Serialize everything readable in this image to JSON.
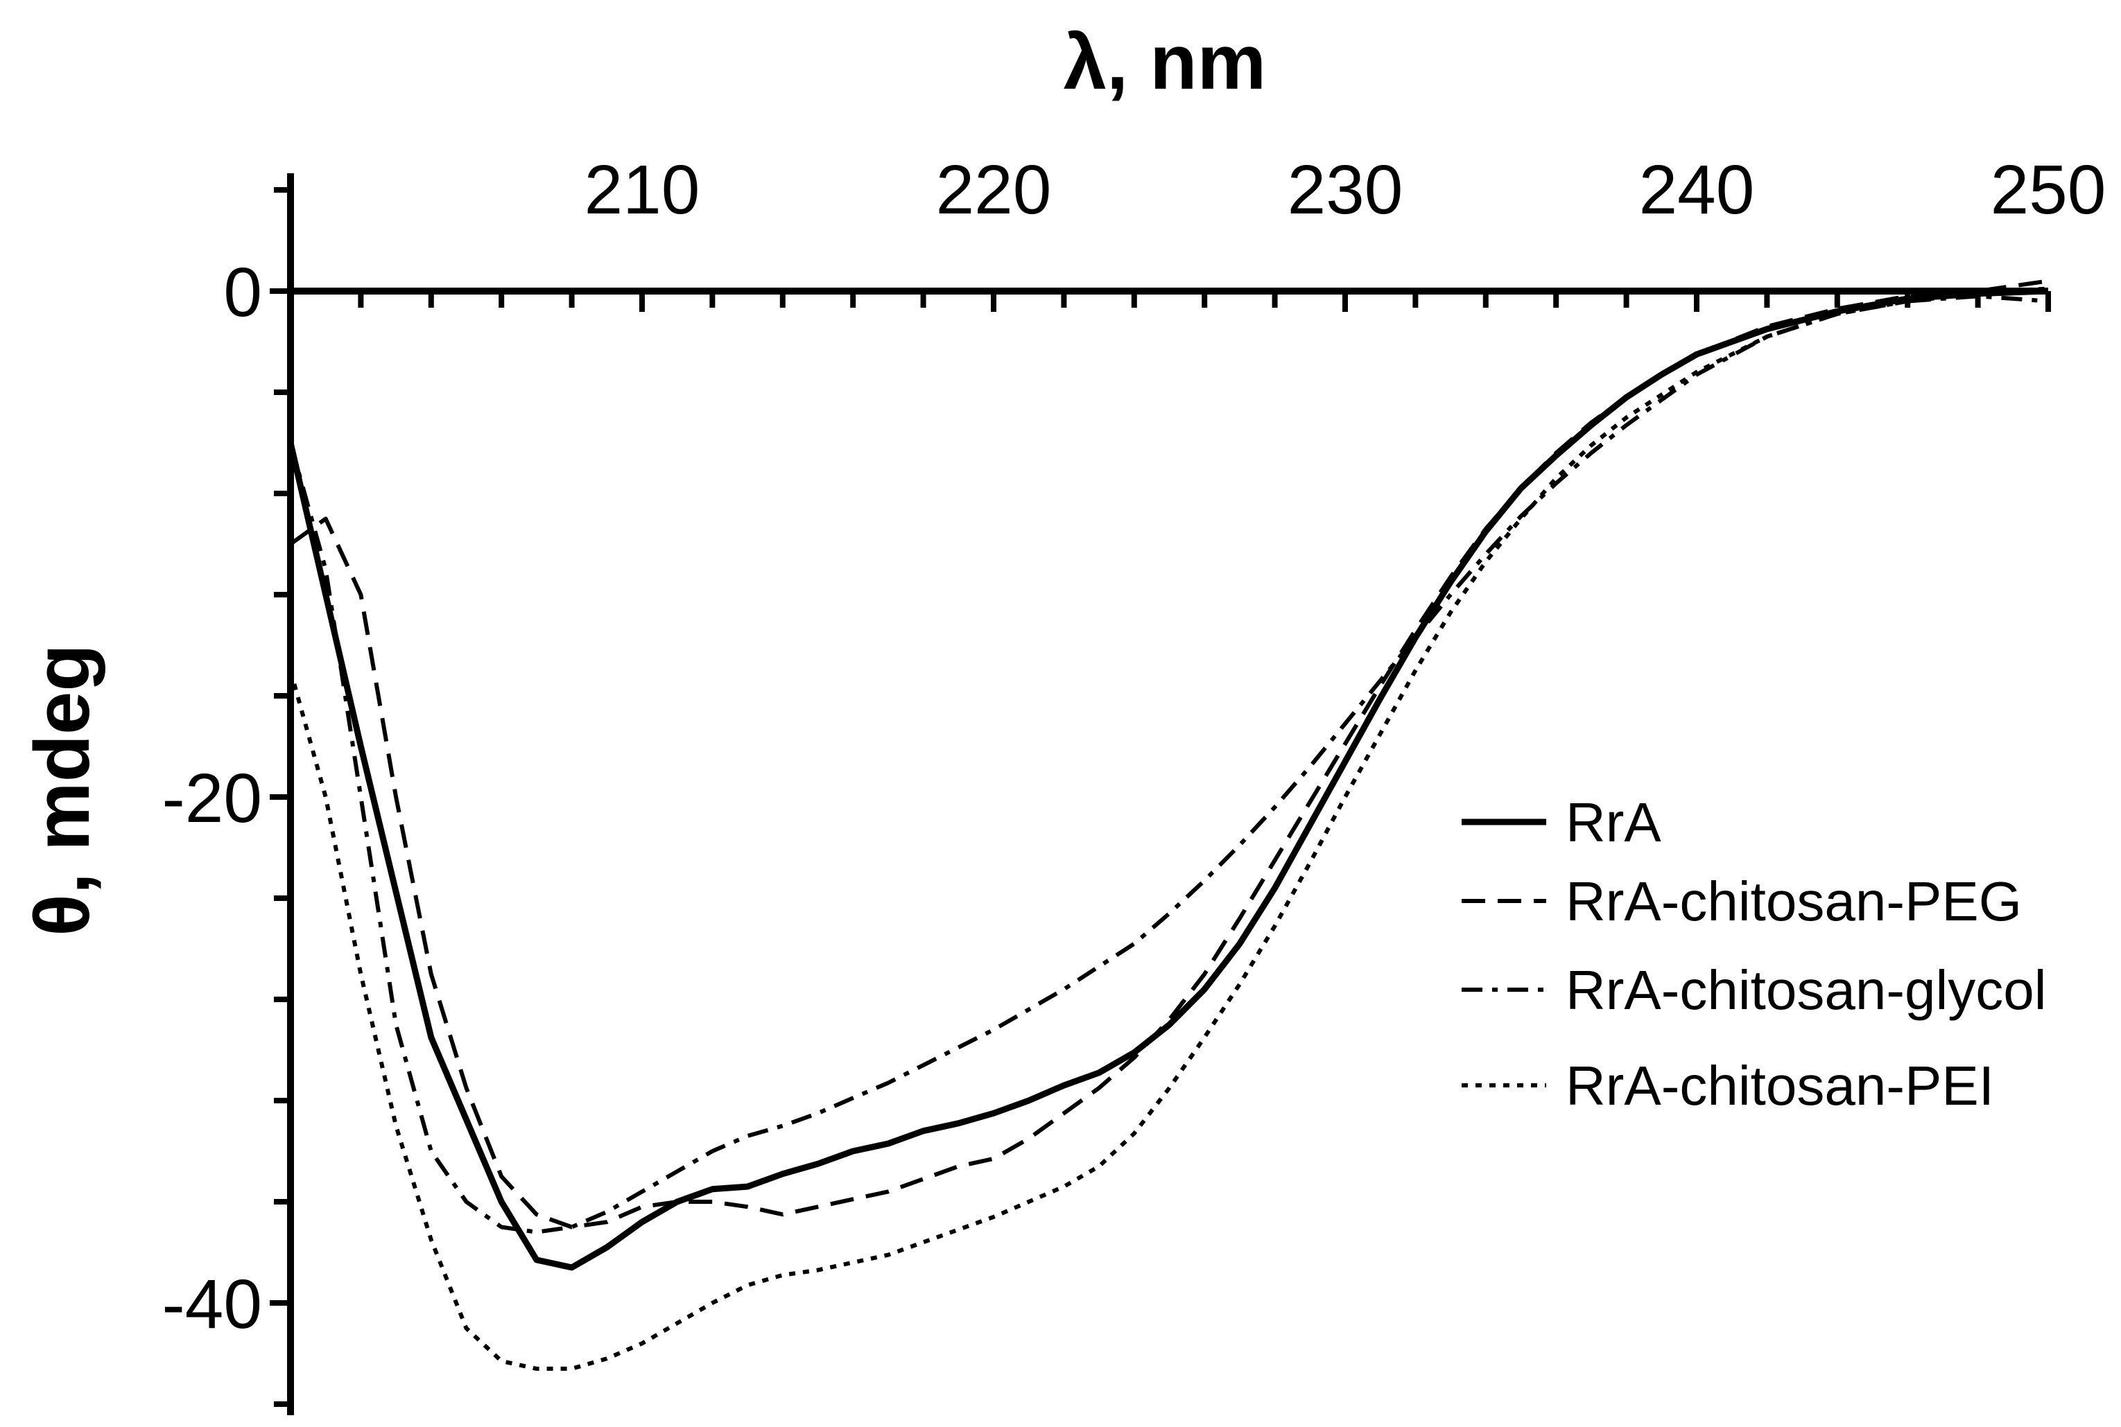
{
  "chart_data": {
    "type": "line",
    "title": "",
    "xlabel": "λ, nm",
    "ylabel": "θ, mdeg",
    "xlim": [
      200,
      250
    ],
    "ylim": [
      -44,
      4
    ],
    "xticks": [
      210,
      220,
      230,
      240,
      250
    ],
    "xtick_labels": [
      "210",
      "220",
      "230",
      "240",
      "250"
    ],
    "yticks": [
      0,
      -20,
      -40
    ],
    "ytick_labels": [
      "0",
      "-20",
      "-40"
    ],
    "legend_position": "right",
    "grid": false,
    "series": [
      {
        "name": "RrA",
        "style": "solid",
        "x": [
          200,
          202,
          204,
          206,
          207,
          208,
          209,
          210,
          211,
          212,
          213,
          214,
          215,
          216,
          217,
          218,
          219,
          220,
          221,
          222,
          223,
          224,
          225,
          226,
          227,
          228,
          229,
          230,
          231,
          232,
          233,
          234,
          235,
          236,
          237,
          238,
          239,
          240,
          242,
          244,
          246,
          248,
          250
        ],
        "values": [
          -6,
          -18,
          -29.5,
          -36,
          -38.3,
          -38.6,
          -37.8,
          -36.8,
          -36,
          -35.5,
          -35.4,
          -34.9,
          -34.5,
          -34,
          -33.7,
          -33.2,
          -32.9,
          -32.5,
          -32,
          -31.4,
          -30.9,
          -30.1,
          -29,
          -27.6,
          -25.8,
          -23.6,
          -21.1,
          -18.6,
          -16.1,
          -13.7,
          -11.5,
          -9.5,
          -7.8,
          -6.5,
          -5.3,
          -4.2,
          -3.3,
          -2.5,
          -1.5,
          -0.8,
          -0.3,
          -0.1,
          0
        ]
      },
      {
        "name": "RrA-chitosan-PEG",
        "style": "dashed",
        "x": [
          200,
          201,
          202,
          203,
          204,
          205,
          206,
          207,
          208,
          209,
          210,
          211,
          212,
          213,
          214,
          215,
          216,
          217,
          218,
          219,
          220,
          221,
          222,
          223,
          224,
          225,
          226,
          227,
          228,
          229,
          230,
          231,
          232,
          233,
          234,
          235,
          236,
          237,
          238,
          239,
          240,
          242,
          244,
          246,
          248,
          250
        ],
        "values": [
          -10,
          -9,
          -12,
          -20,
          -27,
          -31.5,
          -35,
          -36.5,
          -37,
          -36.8,
          -36.2,
          -36,
          -36,
          -36.2,
          -36.5,
          -36.2,
          -35.9,
          -35.6,
          -35.1,
          -34.6,
          -34.3,
          -33.5,
          -32.5,
          -31.5,
          -30.3,
          -28.8,
          -27,
          -24.8,
          -22.5,
          -20.2,
          -17.9,
          -15.6,
          -13.4,
          -11.3,
          -9.4,
          -7.8,
          -6.4,
          -5.2,
          -4.2,
          -3.3,
          -2.5,
          -1.4,
          -0.7,
          -0.2,
          0,
          0.4
        ]
      },
      {
        "name": "RrA-chitosan-glycol",
        "style": "dashdot",
        "x": [
          200,
          201,
          202,
          203,
          204,
          205,
          206,
          207,
          208,
          209,
          210,
          211,
          212,
          213,
          214,
          215,
          216,
          217,
          218,
          219,
          220,
          221,
          222,
          223,
          224,
          225,
          226,
          227,
          228,
          229,
          230,
          231,
          232,
          233,
          234,
          235,
          236,
          237,
          238,
          239,
          240,
          242,
          244,
          246,
          248,
          250
        ],
        "values": [
          -6,
          -11,
          -20,
          -29,
          -34,
          -36,
          -37,
          -37.2,
          -37,
          -36.4,
          -35.6,
          -34.8,
          -34,
          -33.4,
          -33,
          -32.5,
          -31.9,
          -31.3,
          -30.6,
          -29.9,
          -29.2,
          -28.4,
          -27.6,
          -26.7,
          -25.8,
          -24.6,
          -23.3,
          -21.9,
          -20.4,
          -18.8,
          -17.1,
          -15.4,
          -13.7,
          -12,
          -10.4,
          -8.9,
          -7.6,
          -6.4,
          -5.3,
          -4.3,
          -3.3,
          -1.8,
          -0.9,
          -0.4,
          -0.2,
          -0.4
        ]
      },
      {
        "name": "RrA-chitosan-PEI",
        "style": "dotted",
        "x": [
          200,
          201,
          202,
          203,
          204,
          205,
          206,
          207,
          208,
          209,
          210,
          211,
          212,
          213,
          214,
          215,
          216,
          217,
          218,
          219,
          220,
          221,
          222,
          223,
          224,
          225,
          226,
          227,
          228,
          229,
          230,
          231,
          232,
          233,
          234,
          235,
          236,
          237,
          238,
          239,
          240,
          242,
          244,
          246,
          248,
          250
        ],
        "values": [
          -15,
          -20,
          -27,
          -33,
          -37.5,
          -41,
          -42.3,
          -42.6,
          -42.6,
          -42.2,
          -41.6,
          -40.8,
          -40,
          -39.3,
          -38.9,
          -38.7,
          -38.4,
          -38.1,
          -37.6,
          -37.1,
          -36.6,
          -36,
          -35.4,
          -34.6,
          -33.3,
          -31.5,
          -29.5,
          -27.4,
          -25.1,
          -22.6,
          -20,
          -17.5,
          -15,
          -12.7,
          -10.7,
          -9,
          -7.4,
          -6.1,
          -5,
          -4.1,
          -3.2,
          -1.8,
          -0.9,
          -0.4,
          -0.1,
          0.1
        ]
      }
    ]
  }
}
